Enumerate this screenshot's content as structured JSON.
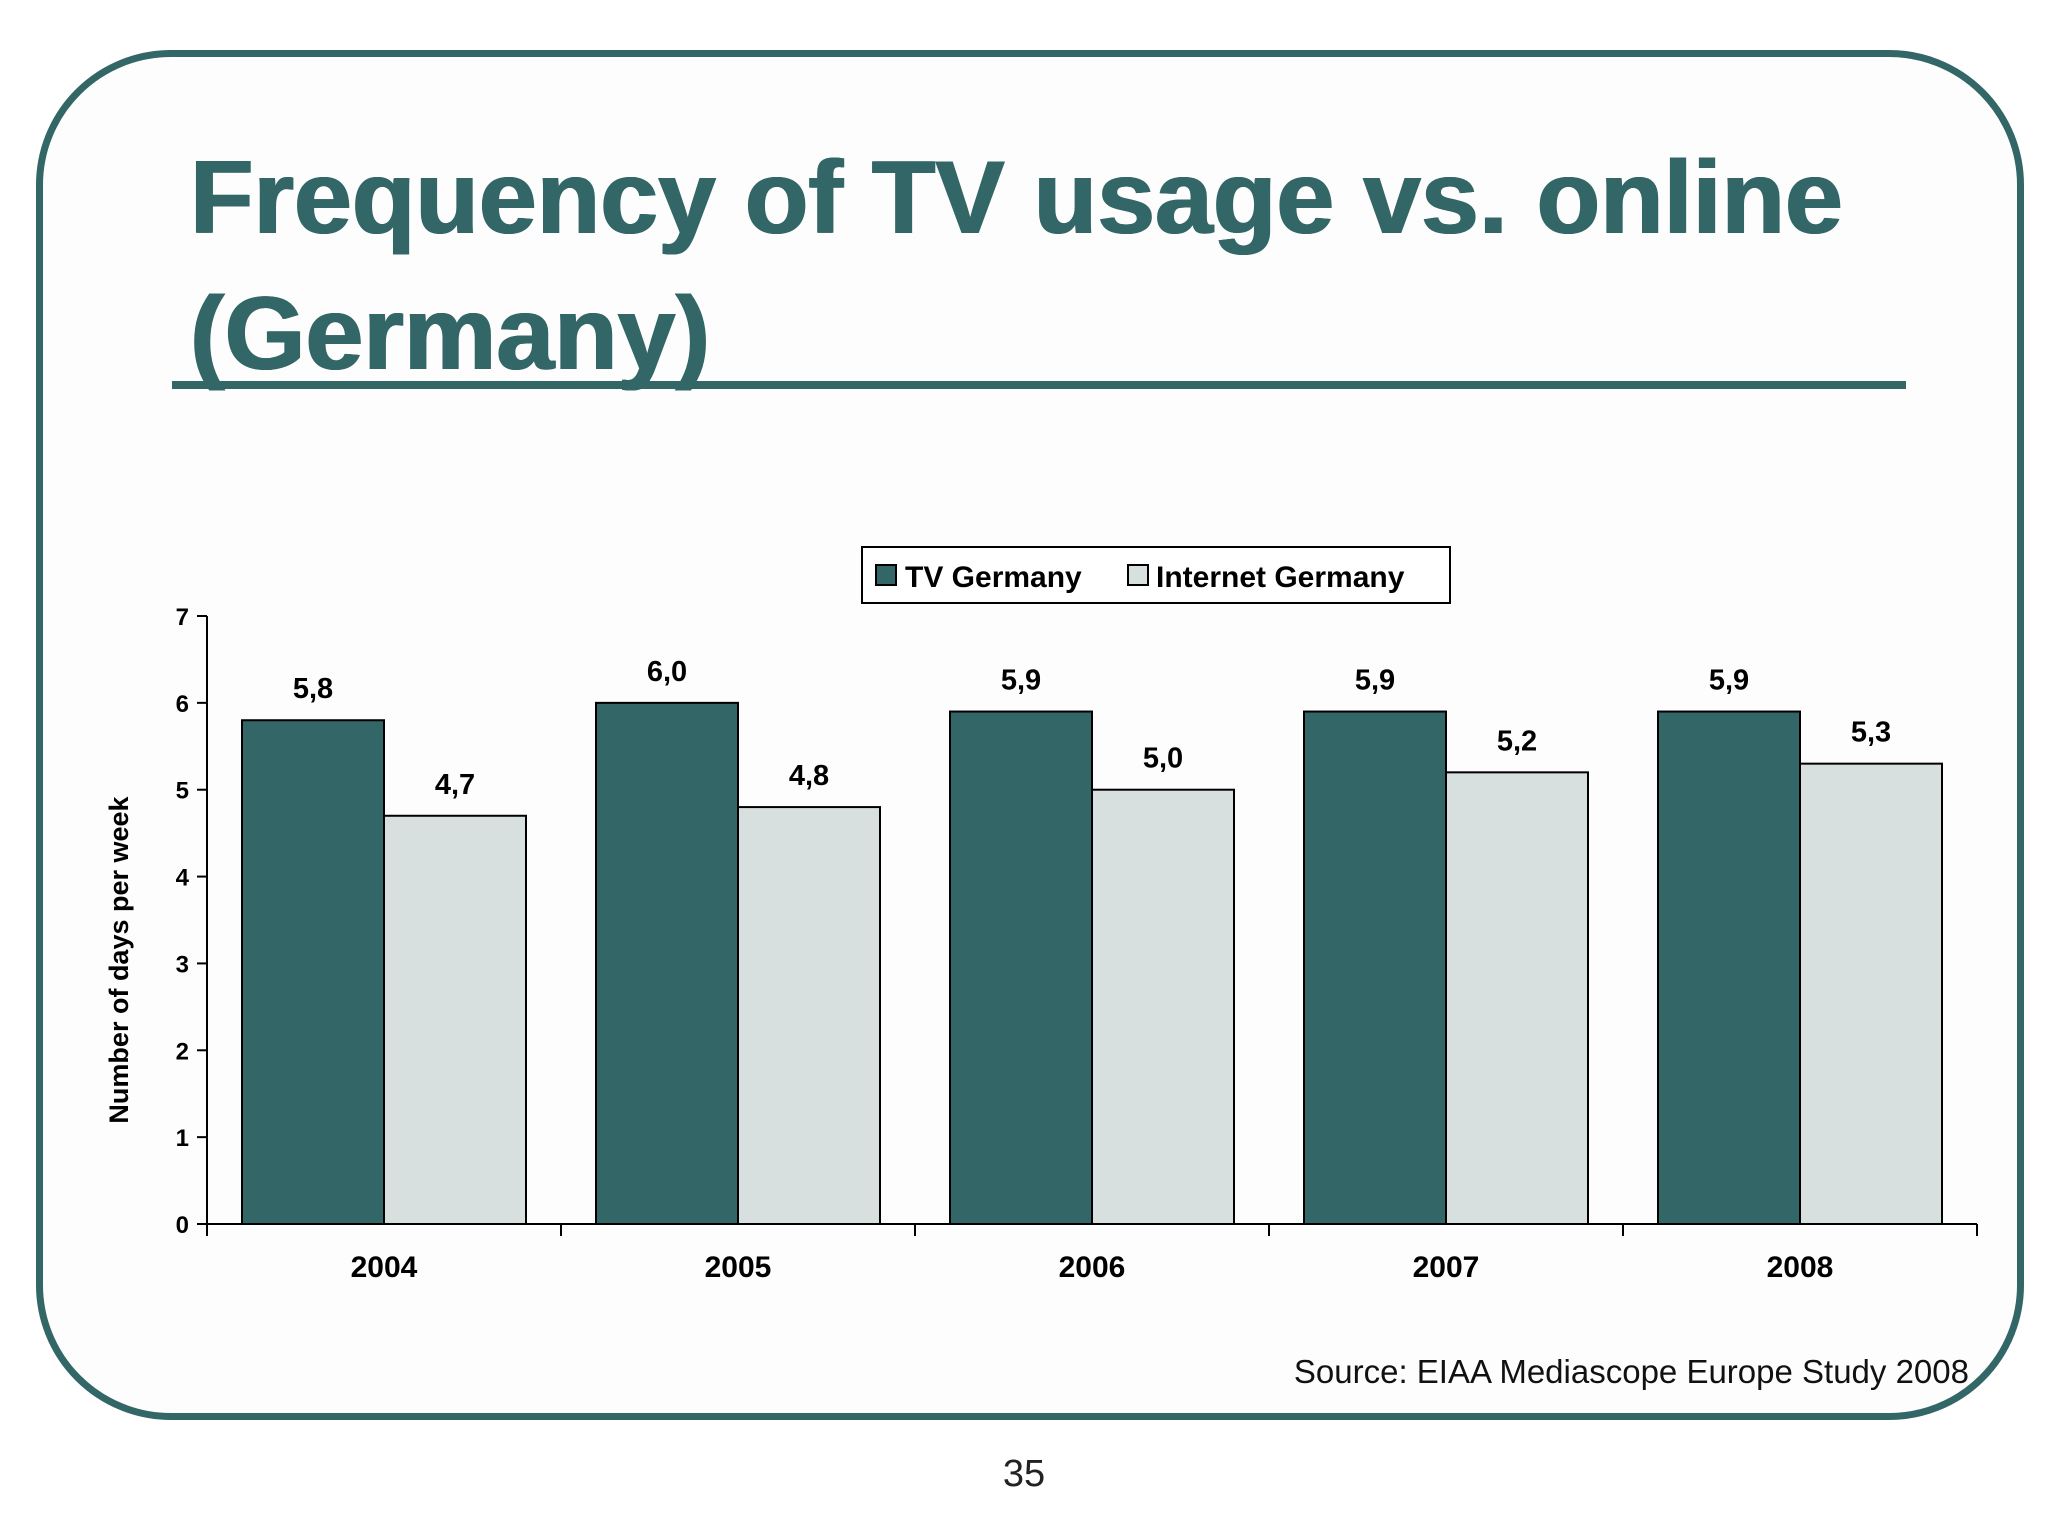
{
  "slide": {
    "title": "Frequency of TV usage vs. online (Germany)",
    "source": "Source: EIAA Mediascope Europe Study 2008",
    "page_number": "35",
    "colors": {
      "accent": "#336666",
      "tv_series": "#336666",
      "internet_series": "#d8e0df"
    }
  },
  "chart_data": {
    "type": "bar",
    "title": "",
    "xlabel": "",
    "ylabel": "Number of days per week",
    "ylim": [
      0,
      7
    ],
    "yticks": [
      "0",
      "1",
      "2",
      "3",
      "4",
      "5",
      "6",
      "7"
    ],
    "categories": [
      "2004",
      "2005",
      "2006",
      "2007",
      "2008"
    ],
    "series": [
      {
        "name": "TV Germany",
        "color": "#336666",
        "values": [
          5.8,
          6.0,
          5.9,
          5.9,
          5.9
        ],
        "labels": [
          "5,8",
          "6,0",
          "5,9",
          "5,9",
          "5,9"
        ]
      },
      {
        "name": "Internet Germany",
        "color": "#d8e0df",
        "values": [
          4.7,
          4.8,
          5.0,
          5.2,
          5.3
        ],
        "labels": [
          "4,7",
          "4,8",
          "5,0",
          "5,2",
          "5,3"
        ]
      }
    ],
    "grid": false,
    "legend": "top-center"
  }
}
